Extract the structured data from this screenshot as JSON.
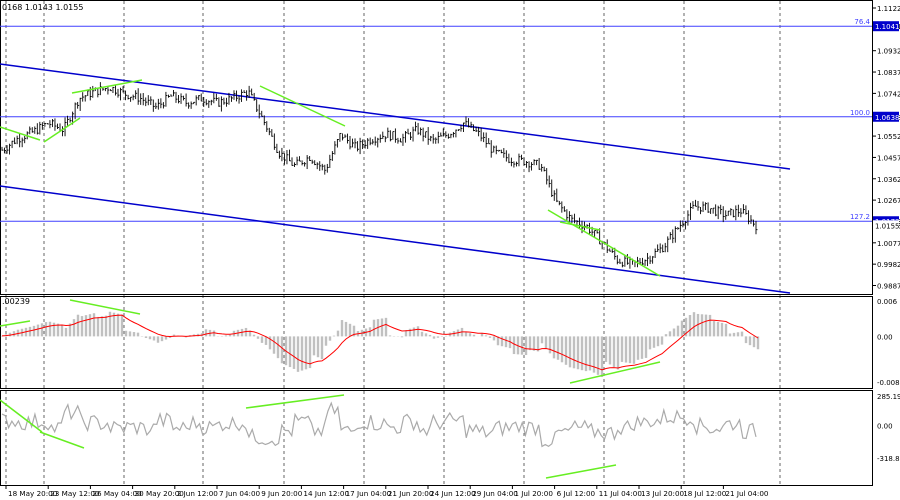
{
  "header": {
    "ohlc_text": "0168 1.0143 1.0155"
  },
  "colors": {
    "bar": "#000000",
    "channel": "#0000cc",
    "fib": "#4040ff",
    "divergence": "#66ee22",
    "macd_hist": "#c0c0c0",
    "macd_signal": "#ff0000",
    "cci": "#aaaaaa",
    "grid": "#000000",
    "label_bg": "#0000cc"
  },
  "chart_data": [
    {
      "type": "candlestick",
      "panel": "main",
      "ylim": [
        0.9867,
        1.1122
      ],
      "y_ticks": [
        "1.1122",
        "1.1041",
        "1.0932",
        "1.0837",
        "1.0742",
        "1.0638",
        "1.0552",
        "1.0457",
        "1.0362",
        "1.0267",
        "1.0173",
        "1.0155",
        "1.0077",
        "0.9982",
        "0.9887"
      ],
      "fib_levels": [
        {
          "label": "76.4",
          "value": 1.1041
        },
        {
          "label": "100.0",
          "value": 1.0638
        },
        {
          "label": "127.2",
          "value": 1.0173
        }
      ],
      "level_labels": [
        "1.1041",
        "1.0638",
        "1.0173",
        "1.0155"
      ],
      "current_price": 1.0155,
      "x_labels": [
        "18 May 20:00",
        "23 May 12:00",
        "26 May 04:00",
        "30 May 20:00",
        "2 Jun 12:00",
        "7 Jun 04:00",
        "9 Jun 20:00",
        "14 Jun 12:00",
        "17 Jun 04:00",
        "21 Jun 20:00",
        "24 Jun 12:00",
        "29 Jun 04:00",
        "1 Jul 20:00",
        "6 Jul 12:00",
        "11 Jul 04:00",
        "13 Jul 20:00",
        "18 Jul 12:00",
        "21 Jul 04:00"
      ],
      "close_path": [
        {
          "t": 0,
          "v": 1.049
        },
        {
          "t": 1,
          "v": 1.054
        },
        {
          "t": 2,
          "v": 1.057
        },
        {
          "t": 3,
          "v": 1.061
        },
        {
          "t": 4,
          "v": 1.058
        },
        {
          "t": 5,
          "v": 1.072
        },
        {
          "t": 6,
          "v": 1.075
        },
        {
          "t": 7,
          "v": 1.077
        },
        {
          "t": 8,
          "v": 1.074
        },
        {
          "t": 9,
          "v": 1.072
        },
        {
          "t": 10,
          "v": 1.068
        },
        {
          "t": 11,
          "v": 1.073
        },
        {
          "t": 12,
          "v": 1.07
        },
        {
          "t": 13,
          "v": 1.072
        },
        {
          "t": 14,
          "v": 1.07
        },
        {
          "t": 15,
          "v": 1.072
        },
        {
          "t": 16,
          "v": 1.075
        },
        {
          "t": 17,
          "v": 1.062
        },
        {
          "t": 18,
          "v": 1.048
        },
        {
          "t": 19,
          "v": 1.042
        },
        {
          "t": 20,
          "v": 1.046
        },
        {
          "t": 21,
          "v": 1.04
        },
        {
          "t": 22,
          "v": 1.056
        },
        {
          "t": 23,
          "v": 1.05
        },
        {
          "t": 24,
          "v": 1.054
        },
        {
          "t": 25,
          "v": 1.056
        },
        {
          "t": 26,
          "v": 1.054
        },
        {
          "t": 27,
          "v": 1.058
        },
        {
          "t": 28,
          "v": 1.053
        },
        {
          "t": 29,
          "v": 1.056
        },
        {
          "t": 30,
          "v": 1.061
        },
        {
          "t": 31,
          "v": 1.056
        },
        {
          "t": 32,
          "v": 1.048
        },
        {
          "t": 33,
          "v": 1.045
        },
        {
          "t": 34,
          "v": 1.044
        },
        {
          "t": 35,
          "v": 1.042
        },
        {
          "t": 36,
          "v": 1.026
        },
        {
          "t": 37,
          "v": 1.018
        },
        {
          "t": 38,
          "v": 1.015
        },
        {
          "t": 39,
          "v": 1.008
        },
        {
          "t": 40,
          "v": 1.0
        },
        {
          "t": 41,
          "v": 0.998
        },
        {
          "t": 42,
          "v": 1.001
        },
        {
          "t": 43,
          "v": 1.006
        },
        {
          "t": 44,
          "v": 1.015
        },
        {
          "t": 45,
          "v": 1.024
        },
        {
          "t": 46,
          "v": 1.023
        },
        {
          "t": 47,
          "v": 1.02
        },
        {
          "t": 48,
          "v": 1.022
        },
        {
          "t": 49,
          "v": 1.0155
        }
      ]
    },
    {
      "type": "histogram",
      "panel": "macd",
      "title_text": ".00239",
      "ylim": [
        -0.00802,
        0.006
      ],
      "y_ticks": [
        "0.006",
        "0.00",
        "-0.00802"
      ]
    },
    {
      "type": "line",
      "panel": "cci",
      "ylim": [
        -318.8116,
        285.1954
      ],
      "y_ticks": [
        "285.1954",
        "0.00",
        "-318.8116"
      ]
    }
  ]
}
